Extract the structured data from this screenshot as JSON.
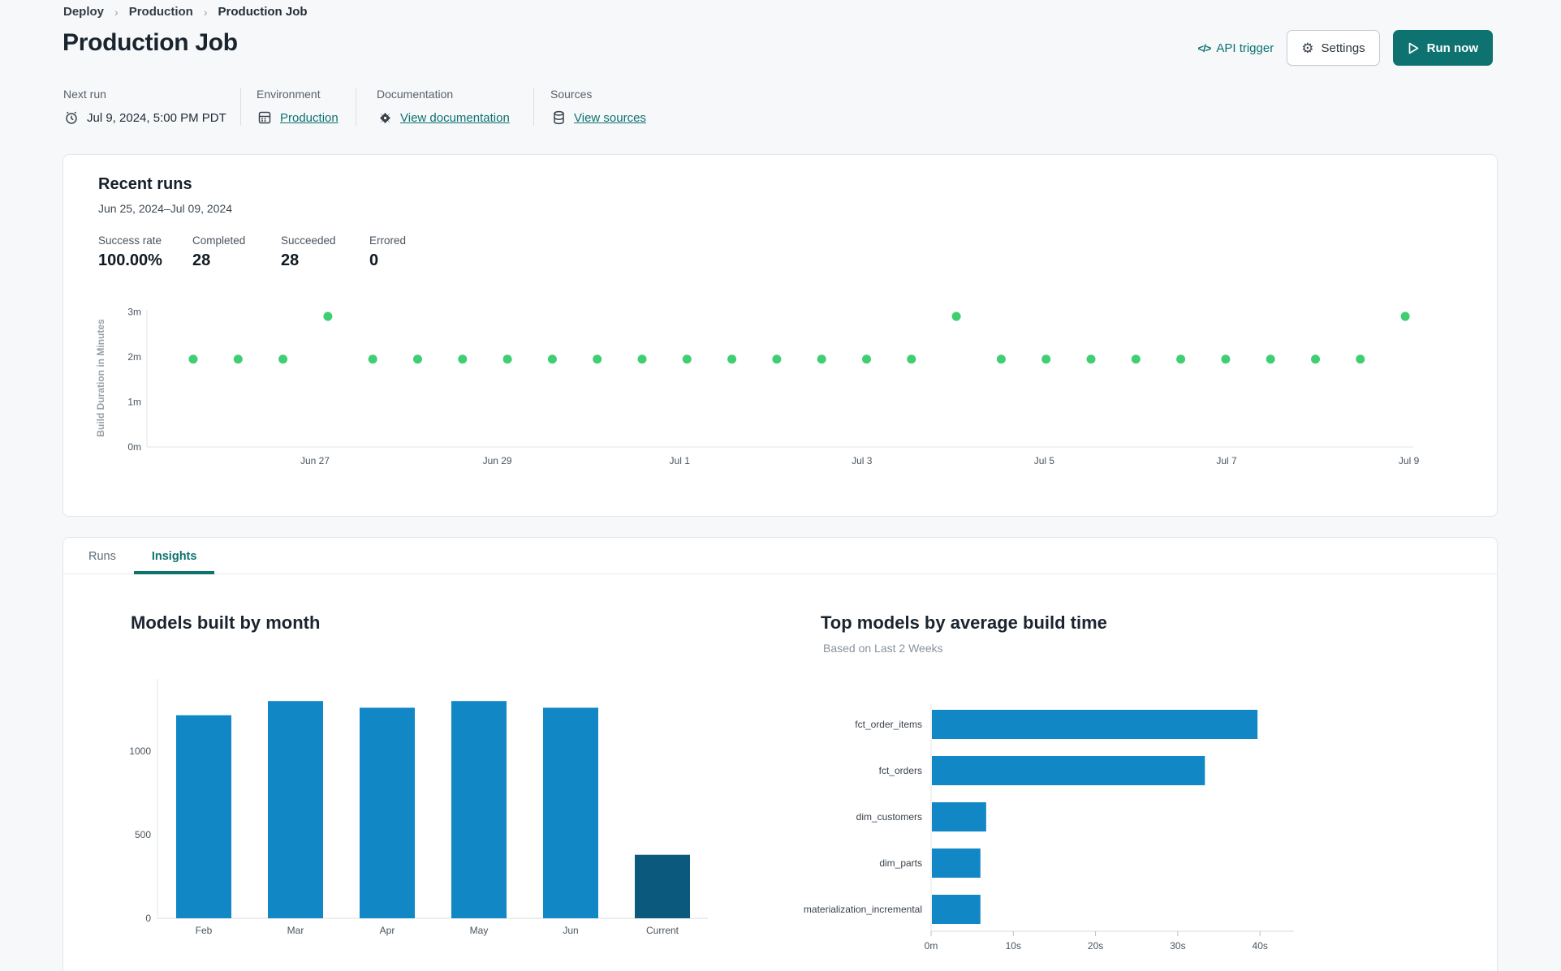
{
  "breadcrumb": {
    "separator": "›",
    "items": [
      "Deploy",
      "Production",
      "Production Job"
    ]
  },
  "header": {
    "title": "Production Job",
    "api_trigger_label": "API trigger",
    "api_trigger_glyph": "</>",
    "settings_label": "Settings",
    "run_now_label": "Run now"
  },
  "meta": {
    "next_run": {
      "label": "Next run",
      "value": "Jul 9, 2024, 5:00 PM PDT",
      "icon": "alarm-clock-icon"
    },
    "environment": {
      "label": "Environment",
      "value": "Production",
      "icon": "environment-icon"
    },
    "documentation": {
      "label": "Documentation",
      "value": "View documentation",
      "icon": "dbt-logo-icon"
    },
    "sources": {
      "label": "Sources",
      "value": "View sources",
      "icon": "database-icon"
    }
  },
  "recent_runs": {
    "title": "Recent runs",
    "date_range": "Jun 25, 2024–Jul 09, 2024",
    "stats": [
      {
        "label": "Success rate",
        "value": "100.00%"
      },
      {
        "label": "Completed",
        "value": "28"
      },
      {
        "label": "Succeeded",
        "value": "28"
      },
      {
        "label": "Errored",
        "value": "0"
      }
    ]
  },
  "tabs": [
    {
      "label": "Runs",
      "active": false
    },
    {
      "label": "Insights",
      "active": true
    }
  ],
  "colors": {
    "accent_teal": "#0d7270",
    "dot_green": "#3fce72",
    "bar_blue": "#1187c6",
    "bar_navy": "#0b5a7d",
    "axis_line": "#e3e6e9",
    "tick_text": "#4a545e"
  },
  "chart_data": [
    {
      "type": "scatter",
      "title": "Recent runs build duration",
      "ylabel": "Build Duration in Minutes",
      "yticks": [
        {
          "label": "0m",
          "value": 0
        },
        {
          "label": "1m",
          "value": 1
        },
        {
          "label": "2m",
          "value": 2
        },
        {
          "label": "3m",
          "value": 3
        }
      ],
      "ylim": [
        0,
        3.2
      ],
      "xticks": [
        "Jun 27",
        "Jun 29",
        "Jul 1",
        "Jul 3",
        "Jul 5",
        "Jul 7",
        "Jul 9"
      ],
      "points_minutes": [
        1.95,
        1.95,
        1.95,
        2.9,
        1.95,
        1.95,
        1.95,
        1.95,
        1.95,
        1.95,
        1.95,
        1.95,
        1.95,
        1.95,
        1.95,
        1.95,
        1.95,
        2.9,
        1.95,
        1.95,
        1.95,
        1.95,
        1.95,
        1.95,
        1.95,
        1.95,
        1.95,
        2.9
      ],
      "point_color": "#3fce72",
      "legend": "none",
      "grid": "off"
    },
    {
      "type": "bar",
      "title": "Models built by month",
      "categories": [
        "Feb",
        "Mar",
        "Apr",
        "May",
        "Jun",
        "Current"
      ],
      "values": [
        1215,
        1300,
        1260,
        1300,
        1260,
        380
      ],
      "yticks": [
        {
          "label": "0",
          "value": 0
        },
        {
          "label": "500",
          "value": 500
        },
        {
          "label": "1000",
          "value": 1000
        }
      ],
      "ylim": [
        0,
        1400
      ],
      "xlabel": "",
      "ylabel": "",
      "bar_color": "#1187c6",
      "current_bar_color": "#0b5a7d",
      "grid": "off"
    },
    {
      "type": "bar",
      "orientation": "horizontal",
      "title": "Top models by average build time",
      "subtitle": "Based on Last 2 Weeks",
      "categories": [
        "fct_order_items",
        "fct_orders",
        "dim_customers",
        "dim_parts",
        "materialization_incremental"
      ],
      "values_seconds": [
        39.6,
        33.2,
        6.6,
        5.9,
        5.9
      ],
      "xticks": [
        {
          "label": "0m",
          "value": 0
        },
        {
          "label": "10s",
          "value": 10
        },
        {
          "label": "20s",
          "value": 20
        },
        {
          "label": "30s",
          "value": 30
        },
        {
          "label": "40s",
          "value": 40
        }
      ],
      "xlim": [
        0,
        44
      ],
      "bar_color": "#1187c6",
      "grid": "off"
    }
  ]
}
